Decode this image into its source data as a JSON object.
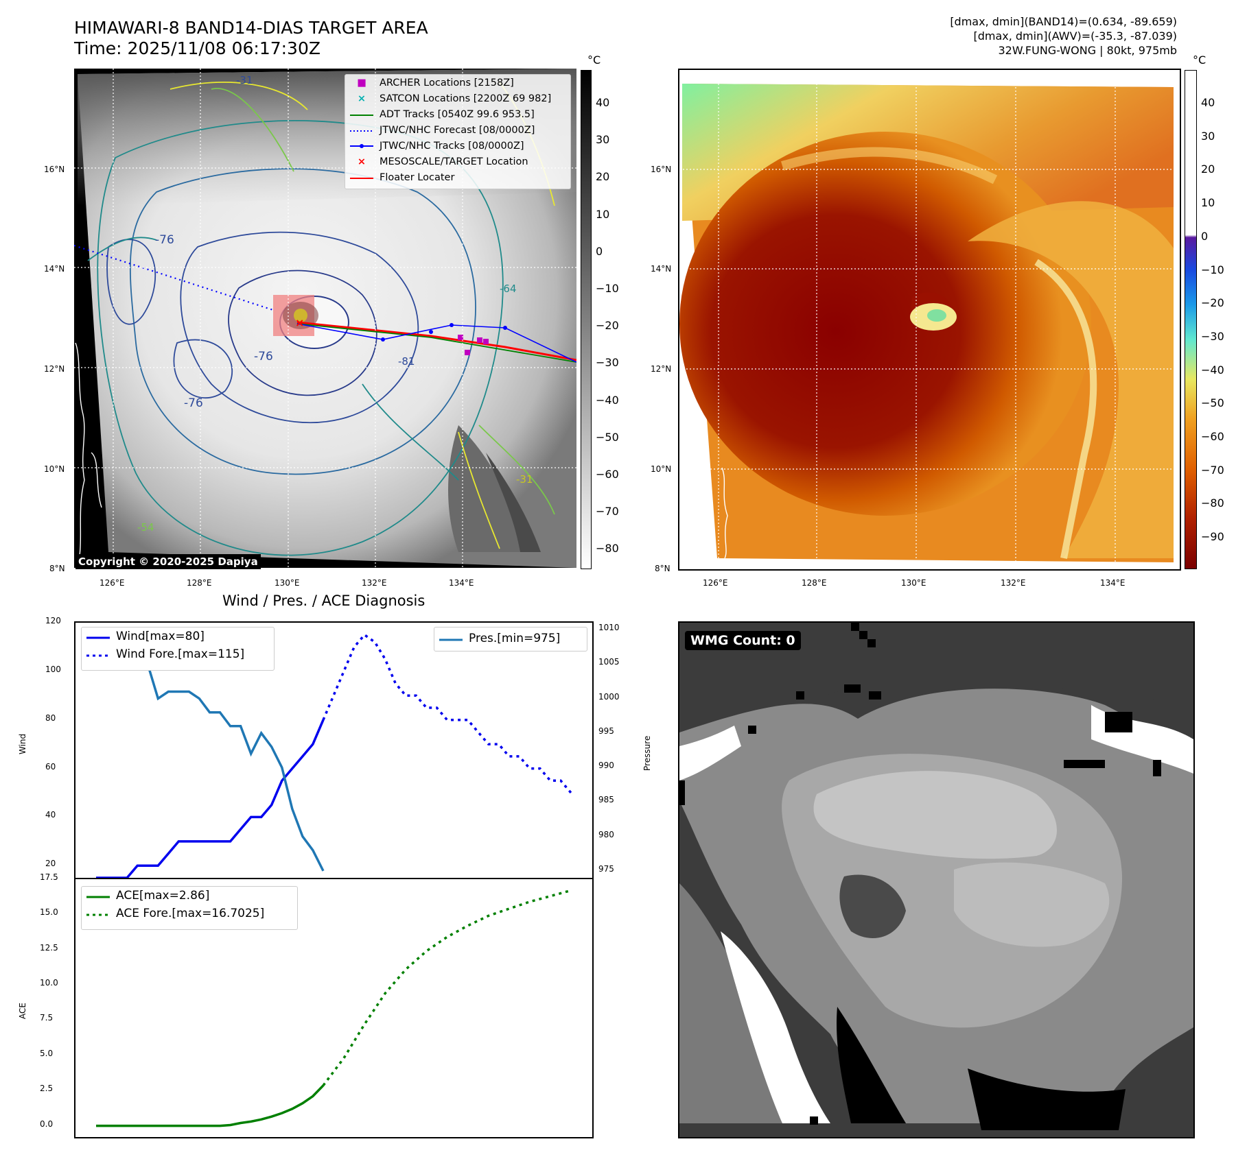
{
  "header": {
    "title_line1": "HIMAWARI-8 BAND14-DIAS TARGET AREA",
    "title_line2": "Time: 2025/11/08 06:17:30Z",
    "info_line1": "[dmax, dmin](BAND14)=(0.634, -89.659)",
    "info_line2": "[dmax, dmin](AWV)=(-35.3, -87.039)",
    "info_line3": "32W.FUNG-WONG | 80kt, 975mb"
  },
  "map_axes": {
    "lat_labels": [
      "16°N",
      "14°N",
      "12°N",
      "10°N",
      "8°N"
    ],
    "lon_labels": [
      "126°E",
      "128°E",
      "130°E",
      "132°E",
      "134°E"
    ]
  },
  "ir_panel": {
    "legend": [
      {
        "label": "ARCHER Locations [2158Z]",
        "color": "#c000c0",
        "symbol": "square"
      },
      {
        "label": "SATCON Locations [2200Z 69 982]",
        "color": "#00b0b0",
        "symbol": "x"
      },
      {
        "label": "ADT Tracks [0540Z 99.6 953.5]",
        "color": "#008000",
        "symbol": "line"
      },
      {
        "label": "JTWC/NHC Forecast [08/0000Z]",
        "color": "#0000ff",
        "symbol": "dotted"
      },
      {
        "label": "JTWC/NHC Tracks [08/0000Z]",
        "color": "#0000ff",
        "symbol": "line-dot"
      },
      {
        "label": "MESOSCALE/TARGET Location",
        "color": "#ff0000",
        "symbol": "x"
      },
      {
        "label": "Floater Locater",
        "color": "#ff0000",
        "symbol": "line"
      }
    ],
    "contour_labels": [
      "-31",
      "-54",
      "-64",
      "-76",
      "-81"
    ],
    "copyright": "Copyright © 2020-2025 Dapiya",
    "colorbar_unit": "°C",
    "colorbar_ticks": [
      "40",
      "30",
      "20",
      "10",
      "0",
      "−10",
      "−20",
      "−30",
      "−40",
      "−50",
      "−60",
      "−70",
      "−80"
    ]
  },
  "awv_panel": {
    "colorbar_unit": "°C",
    "colorbar_ticks": [
      "40",
      "30",
      "20",
      "10",
      "0",
      "−10",
      "−20",
      "−30",
      "−40",
      "−50",
      "−60",
      "−70",
      "−80",
      "−90"
    ]
  },
  "wmg_panel": {
    "label": "WMG Count: 0"
  },
  "chart_data": [
    {
      "type": "line",
      "title": "Wind / Pres. / ACE Diagnosis",
      "ylabel": "Wind",
      "y2label": "Pressure",
      "ylim": [
        15,
        120
      ],
      "y2lim": [
        974,
        1011
      ],
      "yticks": [
        20,
        40,
        60,
        80,
        100,
        120
      ],
      "y2ticks": [
        975,
        980,
        985,
        990,
        995,
        1000,
        1005,
        1010
      ],
      "series": [
        {
          "name": "Wind[max=80]",
          "style": "solid",
          "color": "#0000ee",
          "axis": "left",
          "x": [
            0,
            1,
            2,
            3,
            4,
            5,
            6,
            7,
            8,
            9,
            10,
            11,
            12,
            13,
            14,
            15,
            16,
            17,
            18,
            19,
            20,
            21,
            22
          ],
          "values": [
            15,
            15,
            15,
            15,
            20,
            20,
            20,
            25,
            30,
            30,
            30,
            30,
            30,
            30,
            35,
            40,
            40,
            45,
            55,
            60,
            65,
            70,
            80
          ]
        },
        {
          "name": "Wind Fore.[max=115]",
          "style": "dotted",
          "color": "#0000ee",
          "axis": "left",
          "x": [
            22,
            23,
            24,
            25,
            26,
            27,
            28,
            29,
            30,
            31,
            32,
            33,
            34,
            35,
            36,
            37,
            38,
            39,
            40,
            41,
            42,
            43,
            44,
            45,
            46
          ],
          "values": [
            80,
            90,
            100,
            110,
            115,
            112,
            105,
            95,
            90,
            90,
            85,
            85,
            80,
            80,
            80,
            75,
            70,
            70,
            65,
            65,
            60,
            60,
            55,
            55,
            50
          ]
        },
        {
          "name": "Pres.[min=975]",
          "style": "solid",
          "color": "#1f77b4",
          "axis": "right",
          "x": [
            0,
            1,
            2,
            3,
            4,
            5,
            6,
            7,
            8,
            9,
            10,
            11,
            12,
            13,
            14,
            15,
            16,
            17,
            18,
            19,
            20,
            21,
            22
          ],
          "values": [
            1010,
            1008,
            1008,
            1008,
            1007,
            1005,
            1000,
            1001,
            1001,
            1001,
            1000,
            998,
            998,
            996,
            996,
            992,
            995,
            993,
            990,
            984,
            980,
            978,
            975
          ]
        }
      ]
    },
    {
      "type": "line",
      "ylabel": "ACE",
      "ylim": [
        -0.8,
        17.5
      ],
      "yticks": [
        0.0,
        2.5,
        5.0,
        7.5,
        10.0,
        12.5,
        15.0,
        17.5
      ],
      "series": [
        {
          "name": "ACE[max=2.86]",
          "style": "solid",
          "color": "#008000",
          "x": [
            0,
            1,
            2,
            3,
            4,
            5,
            6,
            7,
            8,
            9,
            10,
            11,
            12,
            13,
            14,
            15,
            16,
            17,
            18,
            19,
            20,
            21,
            22
          ],
          "values": [
            0,
            0,
            0,
            0,
            0,
            0,
            0,
            0,
            0,
            0,
            0,
            0,
            0,
            0.05,
            0.2,
            0.3,
            0.45,
            0.65,
            0.9,
            1.2,
            1.6,
            2.1,
            2.86
          ]
        },
        {
          "name": "ACE Fore.[max=16.7025]",
          "style": "dotted",
          "color": "#008000",
          "x": [
            22,
            24,
            26,
            28,
            30,
            32,
            34,
            36,
            38,
            40,
            42,
            44,
            46
          ],
          "values": [
            2.86,
            4.8,
            7.2,
            9.4,
            11.1,
            12.4,
            13.4,
            14.2,
            14.9,
            15.4,
            15.9,
            16.3,
            16.7025
          ]
        }
      ]
    }
  ]
}
